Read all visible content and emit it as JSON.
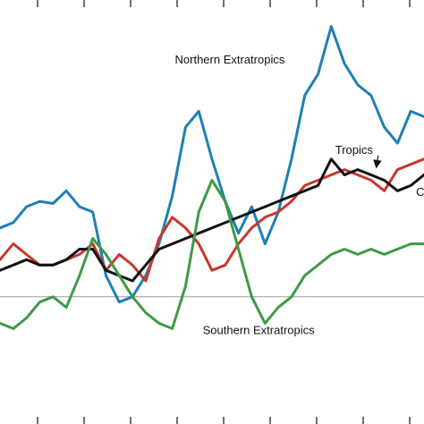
{
  "chart_data": {
    "type": "line",
    "title": "",
    "xlabel": "",
    "ylabel": "",
    "xlim": [
      0,
      32
    ],
    "ylim": [
      -1.2,
      2.8
    ],
    "grid": false,
    "baseline_y": 0,
    "series": [
      {
        "key": "northern",
        "color": "#1f7fb6",
        "x": [
          0,
          1,
          2,
          3,
          4,
          5,
          6,
          7,
          8,
          9,
          10,
          11,
          12,
          13,
          14,
          15,
          16,
          17,
          18,
          19,
          20,
          21,
          22,
          23,
          24,
          25,
          26,
          27,
          28,
          29,
          30,
          31,
          32
        ],
        "y": [
          0.65,
          0.7,
          0.85,
          0.9,
          0.88,
          1.0,
          0.85,
          0.8,
          0.2,
          -0.05,
          0.0,
          0.2,
          0.5,
          0.95,
          1.6,
          1.75,
          1.3,
          0.9,
          0.6,
          0.85,
          0.5,
          0.8,
          1.3,
          1.9,
          2.1,
          2.55,
          2.2,
          2.0,
          1.9,
          1.6,
          1.45,
          1.75,
          1.7
        ]
      },
      {
        "key": "tropics",
        "color": "#c8372d",
        "x": [
          0,
          1,
          2,
          3,
          4,
          5,
          6,
          7,
          8,
          9,
          10,
          11,
          12,
          13,
          14,
          15,
          16,
          17,
          18,
          19,
          20,
          21,
          22,
          23,
          24,
          25,
          26,
          27,
          28,
          29,
          30,
          31,
          32
        ],
        "y": [
          0.35,
          0.5,
          0.4,
          0.3,
          0.3,
          0.35,
          0.4,
          0.5,
          0.25,
          0.4,
          0.3,
          0.15,
          0.55,
          0.75,
          0.65,
          0.5,
          0.25,
          0.3,
          0.5,
          0.65,
          0.75,
          0.8,
          0.9,
          1.05,
          1.1,
          1.15,
          1.2,
          1.15,
          1.1,
          1.0,
          1.2,
          1.25,
          1.3
        ]
      },
      {
        "key": "global",
        "color": "#111111",
        "x": [
          0,
          1,
          2,
          3,
          4,
          5,
          6,
          7,
          8,
          9,
          10,
          11,
          12,
          13,
          14,
          15,
          16,
          17,
          18,
          19,
          20,
          21,
          22,
          23,
          24,
          25,
          26,
          27,
          28,
          29,
          30,
          31,
          32
        ],
        "y": [
          0.25,
          0.3,
          0.35,
          0.3,
          0.3,
          0.35,
          0.45,
          0.45,
          0.25,
          0.2,
          0.15,
          0.3,
          0.45,
          0.5,
          0.55,
          0.6,
          0.65,
          0.7,
          0.75,
          0.8,
          0.85,
          0.9,
          0.95,
          1.0,
          1.05,
          1.3,
          1.15,
          1.2,
          1.15,
          1.1,
          1.0,
          1.05,
          1.15
        ]
      },
      {
        "key": "southern",
        "color": "#3e9a46",
        "x": [
          0,
          1,
          2,
          3,
          4,
          5,
          6,
          7,
          8,
          9,
          10,
          11,
          12,
          13,
          14,
          15,
          16,
          17,
          18,
          19,
          20,
          21,
          22,
          23,
          24,
          25,
          26,
          27,
          28,
          29,
          30,
          31,
          32
        ],
        "y": [
          -0.25,
          -0.3,
          -0.2,
          -0.05,
          0.0,
          -0.1,
          0.2,
          0.55,
          0.4,
          0.2,
          0.0,
          -0.15,
          -0.25,
          -0.3,
          0.1,
          0.8,
          1.1,
          0.9,
          0.45,
          0.0,
          -0.25,
          -0.1,
          0.0,
          0.2,
          0.3,
          0.4,
          0.45,
          0.4,
          0.45,
          0.4,
          0.45,
          0.5,
          0.5
        ]
      }
    ],
    "annotations": [
      {
        "text": "Northern Extratropics",
        "x": 13.2,
        "y": 2.2
      },
      {
        "text": "Tropics",
        "x": 25.3,
        "y": 1.35,
        "arrow_to": [
          28.4,
          1.22
        ]
      },
      {
        "text": "C",
        "x": 31.4,
        "y": 0.95
      },
      {
        "text": "Southern Extratropics",
        "x": 15.3,
        "y": -0.35
      }
    ]
  }
}
